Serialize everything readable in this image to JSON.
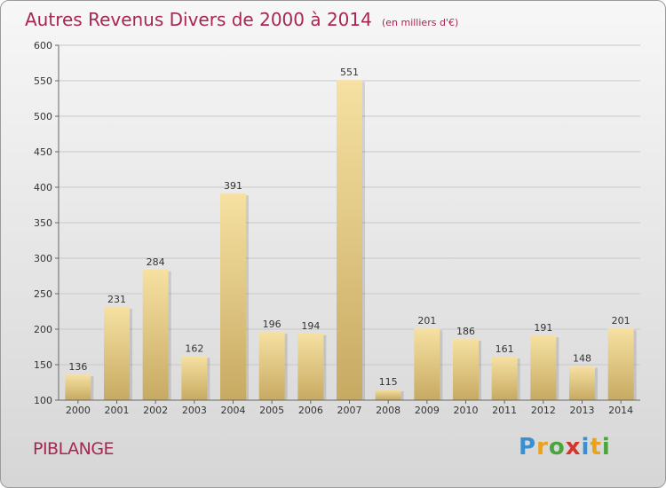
{
  "header": {
    "title": "Autres Revenus Divers de 2000 à 2014",
    "subtitle": "(en milliers d'€)"
  },
  "footer": {
    "place": "PIBLANGE",
    "logo_letters": [
      "P",
      "r",
      "o",
      "x",
      "i",
      "t",
      "i"
    ],
    "logo_colors": [
      "#3a8fd0",
      "#e8a21c",
      "#4aa63c",
      "#d8322e",
      "#3a8fd0",
      "#e8a21c",
      "#4aa63c"
    ]
  },
  "colors": {
    "title": "#a8264f",
    "bar_top": "#f6e1a2",
    "bar_bottom": "#c7aa62",
    "grid": "#c8c8c8"
  },
  "chart_data": {
    "type": "bar",
    "title": "Autres Revenus Divers de 2000 à 2014",
    "subtitle": "(en milliers d'€)",
    "categories": [
      "2000",
      "2001",
      "2002",
      "2003",
      "2004",
      "2005",
      "2006",
      "2007",
      "2008",
      "2009",
      "2010",
      "2011",
      "2012",
      "2013",
      "2014"
    ],
    "values": [
      136,
      231,
      284,
      162,
      391,
      196,
      194,
      551,
      115,
      201,
      186,
      161,
      191,
      148,
      201
    ],
    "ylim": [
      100,
      600
    ],
    "yticks": [
      100,
      150,
      200,
      250,
      300,
      350,
      400,
      450,
      500,
      550,
      600
    ],
    "grid": true,
    "xlabel": "",
    "ylabel": ""
  }
}
